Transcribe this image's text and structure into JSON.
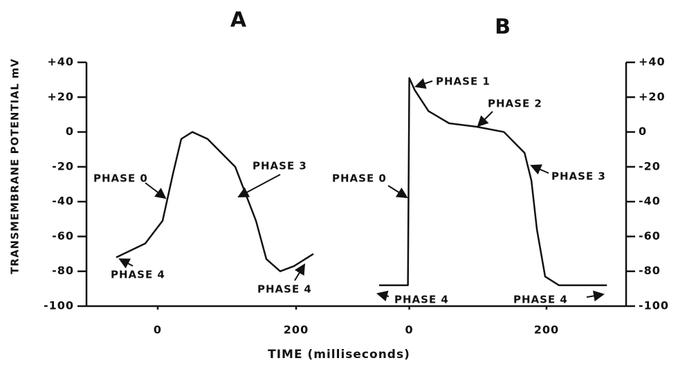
{
  "chart_data": [
    {
      "type": "line",
      "title": "A",
      "ylabel": "TRANSMEMBRANE POTENTIAL mV",
      "y_axis_side": "left",
      "x": [
        -60,
        -18,
        7,
        22,
        34,
        50,
        72,
        112,
        142,
        157,
        177,
        197,
        225
      ],
      "values": [
        -72,
        -64,
        -51,
        -24,
        -4,
        0,
        -4,
        -20,
        -51,
        -73,
        -80,
        -77,
        -70
      ],
      "xlim": [
        -103,
        317
      ],
      "xticks": [
        0,
        200
      ],
      "ylim": [
        -100,
        40
      ],
      "yticks": [
        {
          "value": 40,
          "label": "+40"
        },
        {
          "value": 20,
          "label": "+20"
        },
        0,
        -20,
        -40,
        -60,
        -80,
        -100
      ],
      "annotations": [
        "PHASE 0",
        "PHASE 3",
        "PHASE 4",
        "PHASE 4"
      ]
    },
    {
      "type": "line",
      "title": "B",
      "y_axis_side": "right",
      "x": [
        -44,
        -2,
        0,
        8,
        28,
        58,
        98,
        138,
        168,
        178,
        186,
        198,
        218,
        288
      ],
      "values": [
        -88,
        -88,
        31,
        24,
        12,
        5,
        3,
        0,
        -12,
        -28,
        -56,
        -83,
        -88,
        -88
      ],
      "xlim": [
        -47,
        316
      ],
      "xticks": [
        0,
        200
      ],
      "ylim": [
        -100,
        40
      ],
      "yticks": [
        {
          "value": 40,
          "label": "+40"
        },
        {
          "value": 20,
          "label": "+20"
        },
        0,
        -20,
        -40,
        -60,
        -80,
        -100
      ],
      "annotations": [
        "PHASE 1",
        "PHASE 2",
        "PHASE 0",
        "PHASE 3",
        "PHASE 4",
        "PHASE 4"
      ]
    }
  ],
  "xlabel": "TIME (milliseconds)"
}
